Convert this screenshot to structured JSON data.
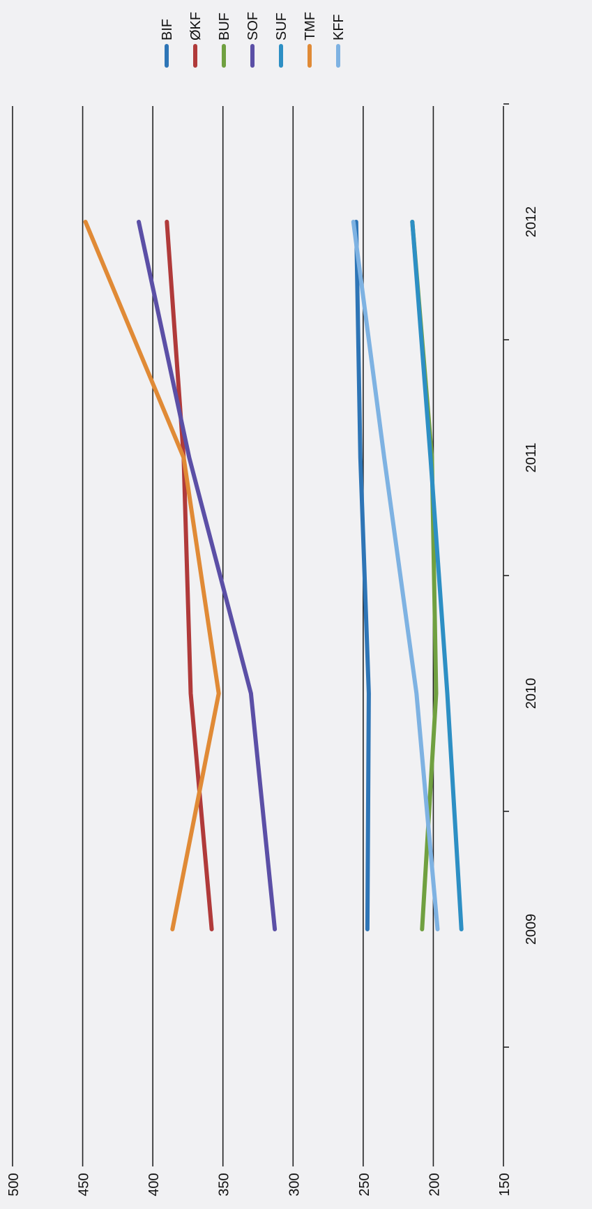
{
  "chart_data": {
    "type": "line",
    "orientation": "rotated-90-clockwise",
    "title": "",
    "xlabel": "",
    "ylabel": "",
    "x": [
      "2009",
      "2010",
      "2011",
      "2012"
    ],
    "ylim": [
      150,
      500
    ],
    "yticks": [
      "500",
      "450",
      "400",
      "350",
      "300",
      "250",
      "200",
      "150"
    ],
    "grid": true,
    "legend_position": "top-right",
    "series": [
      {
        "name": "BIF",
        "color": "#2e75b6",
        "values": [
          247,
          246,
          252,
          255
        ]
      },
      {
        "name": "ØKF",
        "color": "#b03a3a",
        "values": [
          358,
          373,
          378,
          390
        ]
      },
      {
        "name": "BUF",
        "color": "#70a040",
        "values": [
          208,
          198,
          201,
          215
        ]
      },
      {
        "name": "SOF",
        "color": "#5b4fa6",
        "values": [
          313,
          330,
          374,
          410
        ]
      },
      {
        "name": "SUF",
        "color": "#2d8fc4",
        "values": [
          180,
          190,
          202,
          215
        ]
      },
      {
        "name": "TMF",
        "color": "#e08a36",
        "values": [
          386,
          353,
          378,
          448
        ]
      },
      {
        "name": "KFF",
        "color": "#7eb2e2",
        "values": [
          197,
          212,
          235,
          257
        ]
      }
    ]
  }
}
